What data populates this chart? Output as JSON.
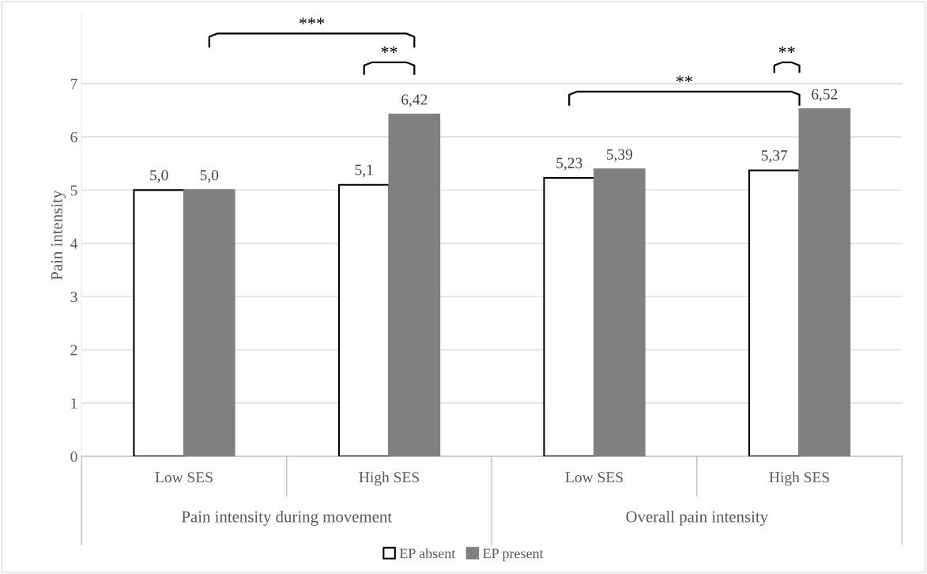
{
  "chart_data": {
    "type": "bar",
    "ylabel": "Pain intensity",
    "categories": [
      "Low SES",
      "High SES",
      "Low SES",
      "High SES"
    ],
    "series": [
      {
        "name": "EP absent",
        "color": "#ffffff",
        "values": [
          5.0,
          5.1,
          5.23,
          5.37
        ],
        "value_labels": [
          "5,0",
          "5,1",
          "5,23",
          "5,37"
        ]
      },
      {
        "name": "EP present",
        "color": "#808080",
        "values": [
          5.0,
          6.42,
          5.39,
          6.52
        ],
        "value_labels": [
          "5,0",
          "6,42",
          "5,39",
          "6,52"
        ]
      }
    ],
    "ylim": [
      0,
      8.3
    ],
    "yticks": [
      0,
      1,
      2,
      3,
      4,
      5,
      6,
      7
    ],
    "grid": "y",
    "legend": "bottom",
    "annotations": [
      "***",
      "**",
      "**",
      "**",
      "Pain intensity during movement",
      "Overall pain intensity"
    ]
  }
}
